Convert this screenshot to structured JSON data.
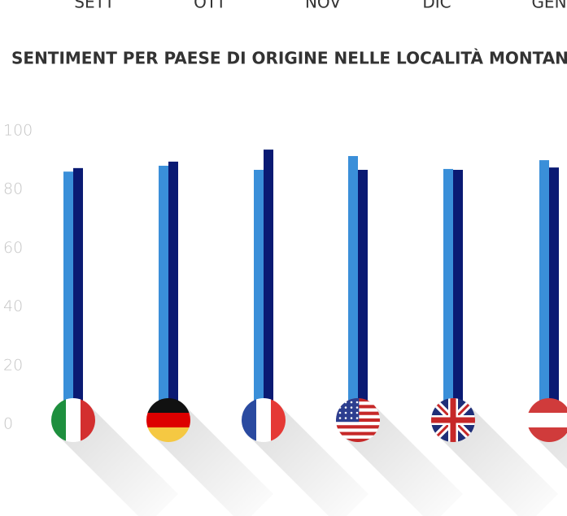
{
  "months": [
    "SETT",
    "OTT",
    "NOV",
    "DIC",
    "GEN"
  ],
  "chart_data": {
    "type": "bar",
    "title": "SENTIMENT PER PAESE DI ORIGINE NELLE LOCALITÀ MONTANE",
    "categories": [
      null,
      null,
      null,
      null,
      null,
      null
    ],
    "series": [
      {
        "color": "#3a8fd9",
        "values": [
          86.1,
          88.1,
          86.7,
          91.4,
          87,
          90
        ]
      },
      {
        "color": "#0a1a73",
        "values": [
          87.3,
          89.5,
          93.6,
          86.7,
          86.7,
          87.5
        ]
      }
    ],
    "ylim": [
      0,
      100
    ],
    "yticks": [
      0,
      20,
      40,
      60,
      80,
      100
    ],
    "grid": false
  }
}
